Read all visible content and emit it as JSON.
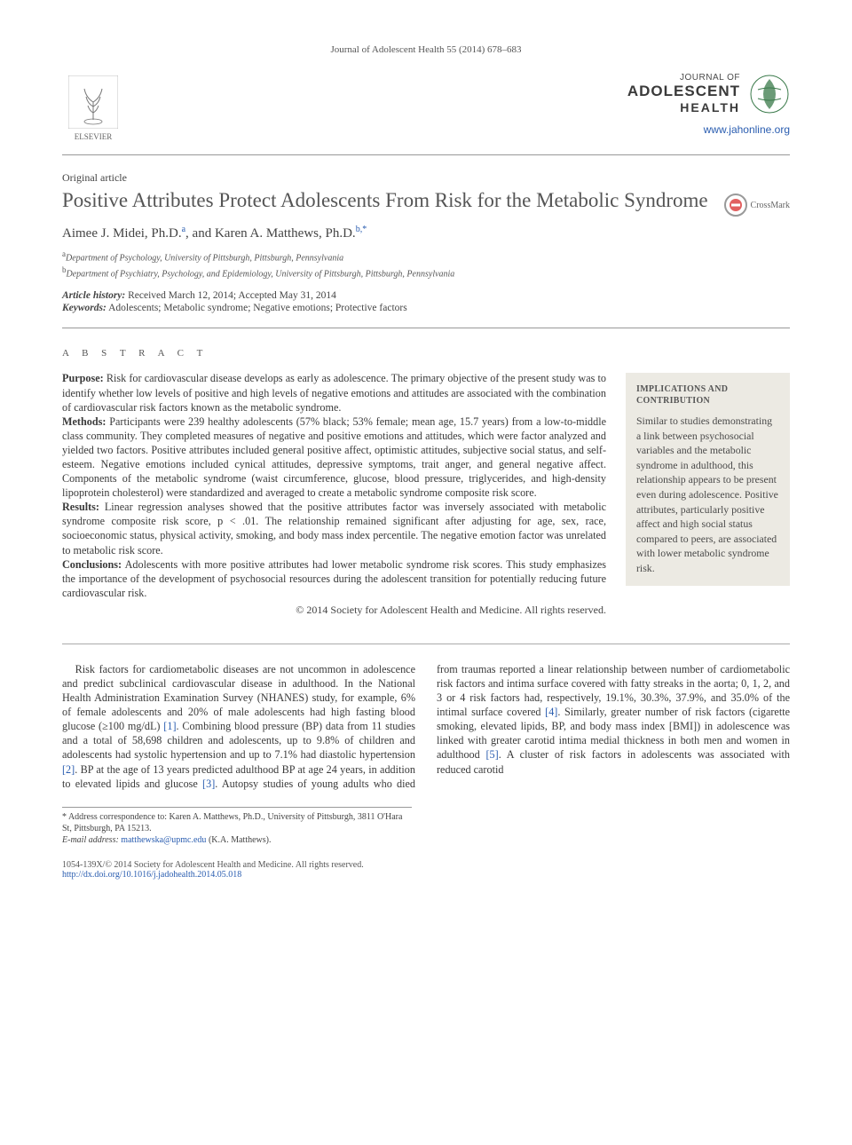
{
  "running_head": "Journal of Adolescent Health 55 (2014) 678–683",
  "header": {
    "publisher_name": "ELSEVIER",
    "journal_name_small": "JOURNAL OF",
    "journal_name_big": "ADOLESCENT",
    "journal_name_medium": "HEALTH",
    "journal_url": "www.jahonline.org",
    "journal_logo_color": "#3a7a4a"
  },
  "article": {
    "type": "Original article",
    "title": "Positive Attributes Protect Adolescents From Risk for the Metabolic Syndrome",
    "crossmark_label": "CrossMark",
    "authors_html": "Aimee J. Midei, Ph.D.ᵃ, and Karen A. Matthews, Ph.D.ᵇʼ*",
    "authors": [
      {
        "name": "Aimee J. Midei, Ph.D.",
        "aff": "a"
      },
      {
        "name": "Karen A. Matthews, Ph.D.",
        "aff": "b",
        "corr": true
      }
    ],
    "affiliations": [
      {
        "key": "a",
        "text": "Department of Psychology, University of Pittsburgh, Pittsburgh, Pennsylvania"
      },
      {
        "key": "b",
        "text": "Department of Psychiatry, Psychology, and Epidemiology, University of Pittsburgh, Pittsburgh, Pennsylvania"
      }
    ],
    "history_label": "Article history:",
    "history_text": "Received March 12, 2014; Accepted May 31, 2014",
    "keywords_label": "Keywords:",
    "keywords_text": "Adolescents; Metabolic syndrome; Negative emotions; Protective factors"
  },
  "abstract": {
    "heading": "A B S T R A C T",
    "sections": [
      {
        "label": "Purpose:",
        "text": "Risk for cardiovascular disease develops as early as adolescence. The primary objective of the present study was to identify whether low levels of positive and high levels of negative emotions and attitudes are associated with the combination of cardiovascular risk factors known as the metabolic syndrome."
      },
      {
        "label": "Methods:",
        "text": "Participants were 239 healthy adolescents (57% black; 53% female; mean age, 15.7 years) from a low-to-middle class community. They completed measures of negative and positive emotions and attitudes, which were factor analyzed and yielded two factors. Positive attributes included general positive affect, optimistic attitudes, subjective social status, and self-esteem. Negative emotions included cynical attitudes, depressive symptoms, trait anger, and general negative affect. Components of the metabolic syndrome (waist circumference, glucose, blood pressure, triglycerides, and high-density lipoprotein cholesterol) were standardized and averaged to create a metabolic syndrome composite risk score."
      },
      {
        "label": "Results:",
        "text": "Linear regression analyses showed that the positive attributes factor was inversely associated with metabolic syndrome composite risk score, p < .01. The relationship remained significant after adjusting for age, sex, race, socioeconomic status, physical activity, smoking, and body mass index percentile. The negative emotion factor was unrelated to metabolic risk score."
      },
      {
        "label": "Conclusions:",
        "text": "Adolescents with more positive attributes had lower metabolic syndrome risk scores. This study emphasizes the importance of the development of psychosocial resources during the adolescent transition for potentially reducing future cardiovascular risk."
      }
    ],
    "copyright": "© 2014 Society for Adolescent Health and Medicine. All rights reserved."
  },
  "sidebar": {
    "title": "IMPLICATIONS AND CONTRIBUTION",
    "text": "Similar to studies demonstrating a link between psychosocial variables and the metabolic syndrome in adulthood, this relationship appears to be present even during adolescence. Positive attributes, particularly positive affect and high social status compared to peers, are associated with lower metabolic syndrome risk."
  },
  "body": {
    "para": "Risk factors for cardiometabolic diseases are not uncommon in adolescence and predict subclinical cardiovascular disease in adulthood. In the National Health Administration Examination Survey (NHANES) study, for example, 6% of female adolescents and 20% of male adolescents had high fasting blood glucose (≥100 mg/dL) [1]. Combining blood pressure (BP) data from 11 studies and a total of 58,698 children and adolescents, up to 9.8% of children and adolescents had systolic hypertension and up to 7.1% had diastolic hypertension [2]. BP at the age of 13 years predicted adulthood BP at age 24 years, in addition to elevated lipids and glucose [3]. Autopsy studies of young adults who died from traumas reported a linear relationship between number of cardiometabolic risk factors and intima surface covered with fatty streaks in the aorta; 0, 1, 2, and 3 or 4 risk factors had, respectively, 19.1%, 30.3%, 37.9%, and 35.0% of the intimal surface covered [4]. Similarly, greater number of risk factors (cigarette smoking, elevated lipids, BP, and body mass index [BMI]) in adolescence was linked with greater carotid intima medial thickness in both men and women in adulthood [5]. A cluster of risk factors in adolescents was associated with reduced carotid",
    "ref_marks": {
      "1": "[1]",
      "2": "[2]",
      "3": "[3]",
      "4": "[4]",
      "5": "[5]"
    }
  },
  "footnotes": {
    "corr_label": "* Address correspondence to:",
    "corr_text": "Karen A. Matthews, Ph.D., University of Pittsburgh, 3811 O'Hara St, Pittsburgh, PA 15213.",
    "email_label": "E-mail address:",
    "email": "matthewska@upmc.edu",
    "email_person": "(K.A. Matthews)."
  },
  "footer": {
    "left_line1": "1054-139X/© 2014 Society for Adolescent Health and Medicine. All rights reserved.",
    "left_line2": "http://dx.doi.org/10.1016/j.jadohealth.2014.05.018"
  },
  "colors": {
    "link": "#2a5db0",
    "sidebar_bg": "#eceae3",
    "rule": "#999999",
    "text": "#3a3a3a"
  }
}
